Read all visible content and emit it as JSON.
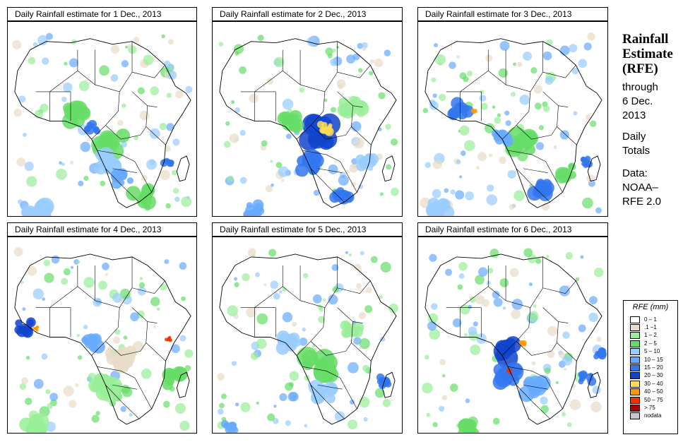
{
  "panels": [
    {
      "title": "Daily Rainfall estimate for  1 Dec., 2013"
    },
    {
      "title": "Daily Rainfall estimate for  2 Dec., 2013"
    },
    {
      "title": "Daily Rainfall estimate for  3 Dec., 2013"
    },
    {
      "title": "Daily Rainfall estimate for  4 Dec., 2013"
    },
    {
      "title": "Daily Rainfall estimate for  5 Dec., 2013"
    },
    {
      "title": "Daily Rainfall estimate for  6 Dec., 2013"
    }
  ],
  "sidebar": {
    "title_line1": "Rainfall",
    "title_line2": "Estimate",
    "title_line3": "(RFE)",
    "through": "through",
    "date_line1": "6 Dec.",
    "date_line2": "2013",
    "daily": "Daily",
    "totals": "Totals",
    "data_label": "Data:",
    "source_line1": "NOAA–",
    "source_line2": "RFE 2.0"
  },
  "legend": {
    "title": "RFE (mm)",
    "items": [
      {
        "label": "0 – 1",
        "color": "#ffffff"
      },
      {
        "label": ".1 –1",
        "color": "#e8dcc8"
      },
      {
        "label": "1 – 2",
        "color": "#99ee99"
      },
      {
        "label": "2 – 5",
        "color": "#66dd66"
      },
      {
        "label": "5 – 10",
        "color": "#99ccff"
      },
      {
        "label": "10 – 15",
        "color": "#66aaff"
      },
      {
        "label": "15 – 20",
        "color": "#3377ee"
      },
      {
        "label": "20 – 30",
        "color": "#1144cc"
      },
      {
        "label": "30 – 40",
        "color": "#ffdd55"
      },
      {
        "label": "40 – 50",
        "color": "#ff9900"
      },
      {
        "label": "50 – 75",
        "color": "#ee3300"
      },
      {
        "label": "> 75",
        "color": "#aa0000"
      },
      {
        "label": "nodata",
        "color": "#c8c8c8"
      }
    ]
  }
}
